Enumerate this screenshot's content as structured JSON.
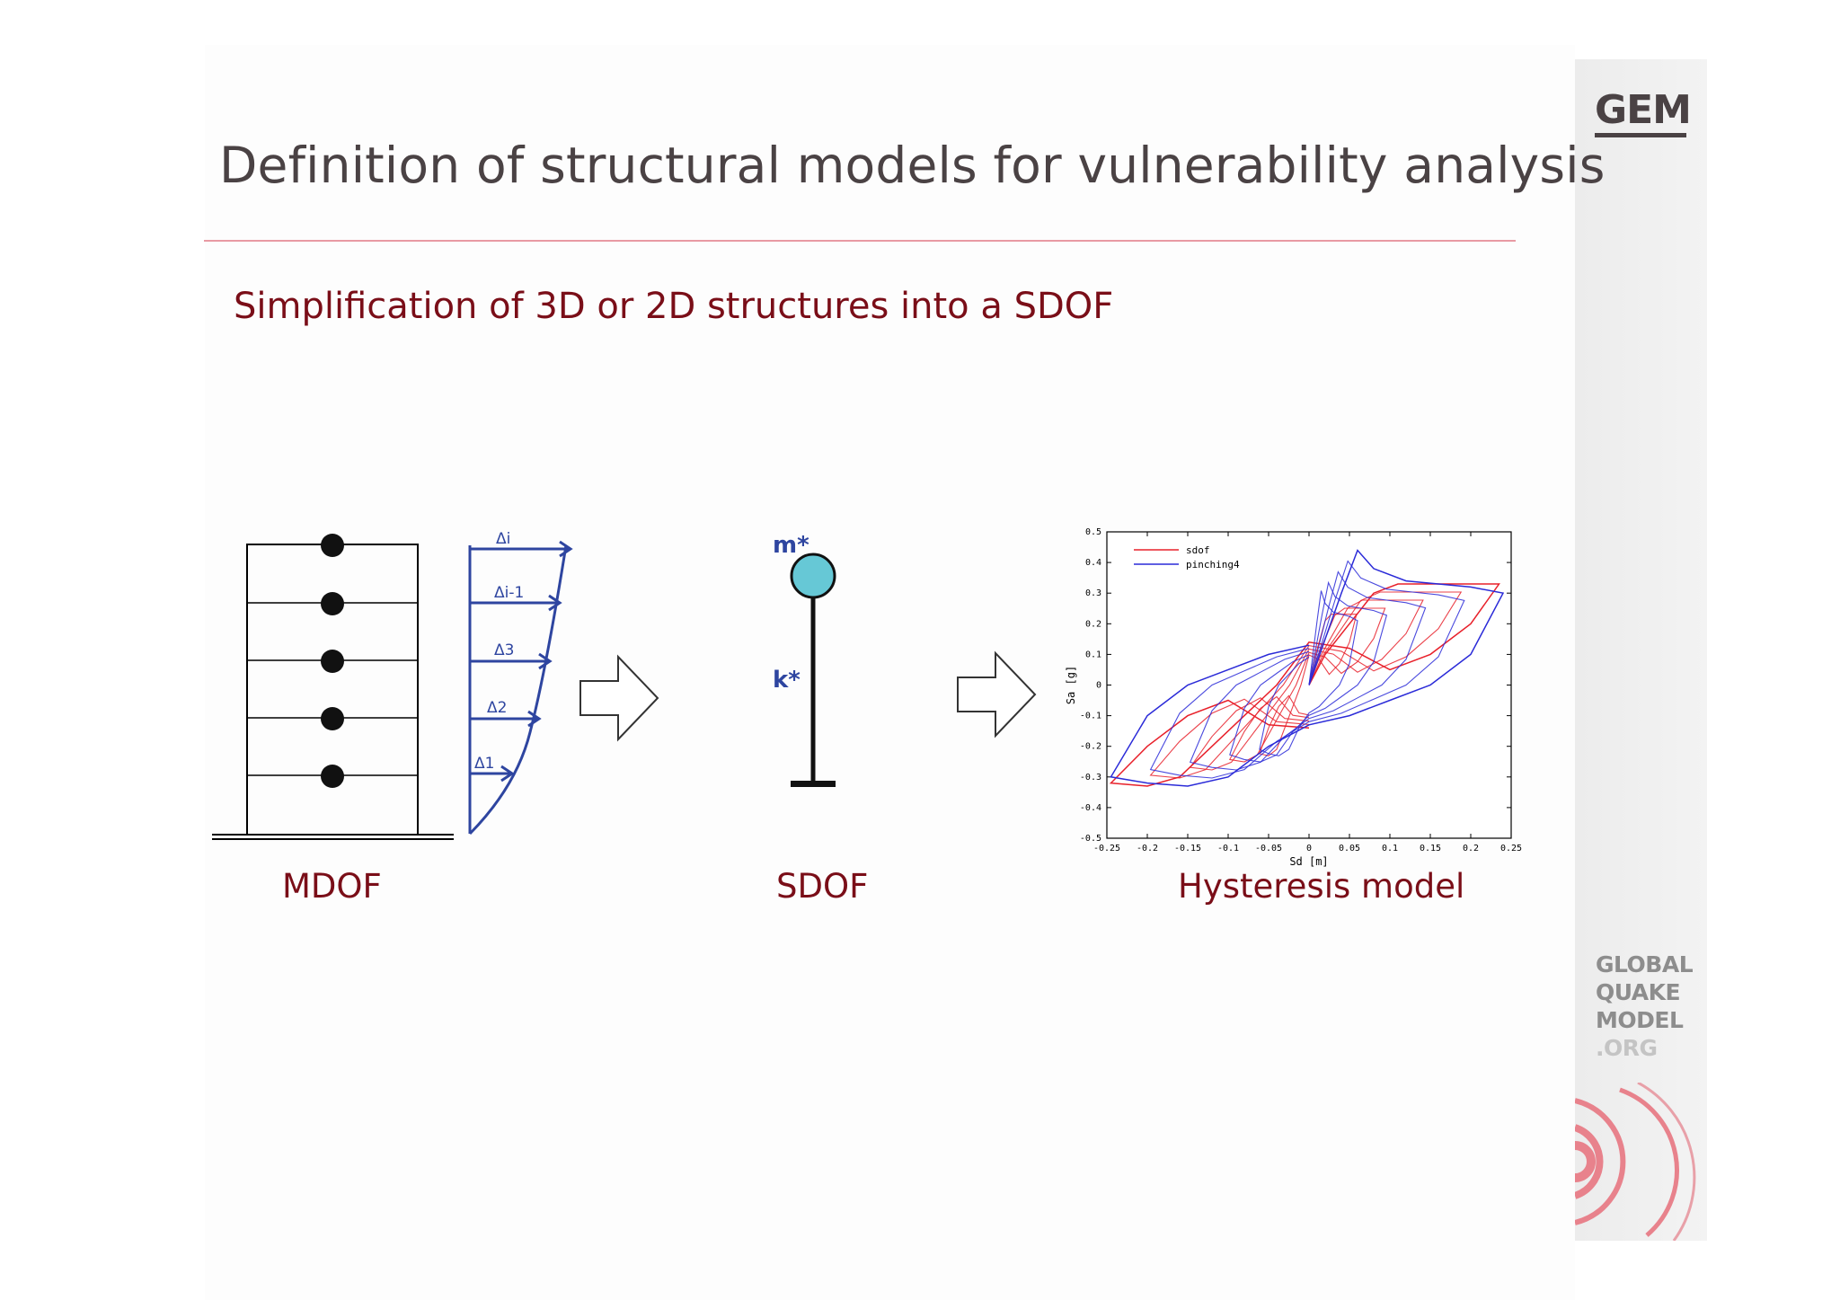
{
  "slide": {
    "title": "Definition of structural models for vulnerability analysis",
    "subtitle": "Simplification of 3D or 2D structures into a SDOF",
    "brand_color": "#7a0e18",
    "accent_line_color": "#e89aa3"
  },
  "logos": {
    "gem": "GEM",
    "global_quake_model": [
      "GLOBAL",
      "QUAKE",
      "MODEL",
      ".ORG"
    ]
  },
  "mdof": {
    "caption": "MDOF",
    "displacement_labels": [
      "Δi",
      "Δi-1",
      "Δ3",
      "Δ2",
      "Δ1"
    ]
  },
  "sdof": {
    "caption": "SDOF",
    "mass_label": "m*",
    "stiffness_label": "k*",
    "mass_color": "#66c8d6",
    "label_color": "#2e45a0"
  },
  "hysteresis": {
    "caption": "Hysteresis model"
  },
  "chart_data": {
    "type": "line",
    "xlabel": "Sd [m]",
    "ylabel": "Sa [g]",
    "xlim": [
      -0.25,
      0.25
    ],
    "ylim": [
      -0.5,
      0.5
    ],
    "x_ticks": [
      "-0.25",
      "-0.2",
      "-0.15",
      "-0.1",
      "-0.05",
      "0",
      "0.05",
      "0.1",
      "0.15",
      "0.2",
      "0.25"
    ],
    "y_ticks": [
      "0.5",
      "0.4",
      "0.3",
      "0.2",
      "0.1",
      "0",
      "-0.1",
      "-0.2",
      "-0.3",
      "-0.4",
      "-0.5"
    ],
    "legend_position": "top-left",
    "grid": false,
    "series": [
      {
        "name": "sdof",
        "color": "#e8202a",
        "x": [
          0,
          0.02,
          0.05,
          0.08,
          0.11,
          0.14,
          0.17,
          0.2,
          0.235,
          0.2,
          0.15,
          0.1,
          0.05,
          0,
          -0.04,
          -0.08,
          -0.12,
          -0.16,
          -0.2,
          -0.245,
          -0.2,
          -0.15,
          -0.1,
          -0.05,
          0
        ],
        "y": [
          0,
          0.1,
          0.2,
          0.3,
          0.33,
          0.33,
          0.33,
          0.33,
          0.33,
          0.2,
          0.1,
          0.05,
          0.12,
          0.14,
          0,
          -0.1,
          -0.2,
          -0.3,
          -0.33,
          -0.32,
          -0.2,
          -0.1,
          -0.05,
          -0.13,
          -0.14
        ]
      },
      {
        "name": "pinching4",
        "color": "#2a2ad8",
        "x": [
          0,
          0.02,
          0.04,
          0.06,
          0.08,
          0.12,
          0.16,
          0.2,
          0.24,
          0.2,
          0.15,
          0.1,
          0.05,
          0,
          -0.05,
          -0.1,
          -0.15,
          -0.2,
          -0.245,
          -0.2,
          -0.15,
          -0.1,
          -0.05,
          0
        ],
        "y": [
          0,
          0.15,
          0.3,
          0.44,
          0.38,
          0.34,
          0.33,
          0.32,
          0.3,
          0.1,
          0.0,
          -0.05,
          -0.1,
          -0.13,
          -0.2,
          -0.3,
          -0.33,
          -0.32,
          -0.3,
          -0.1,
          0.0,
          0.05,
          0.1,
          0.13
        ]
      }
    ]
  }
}
